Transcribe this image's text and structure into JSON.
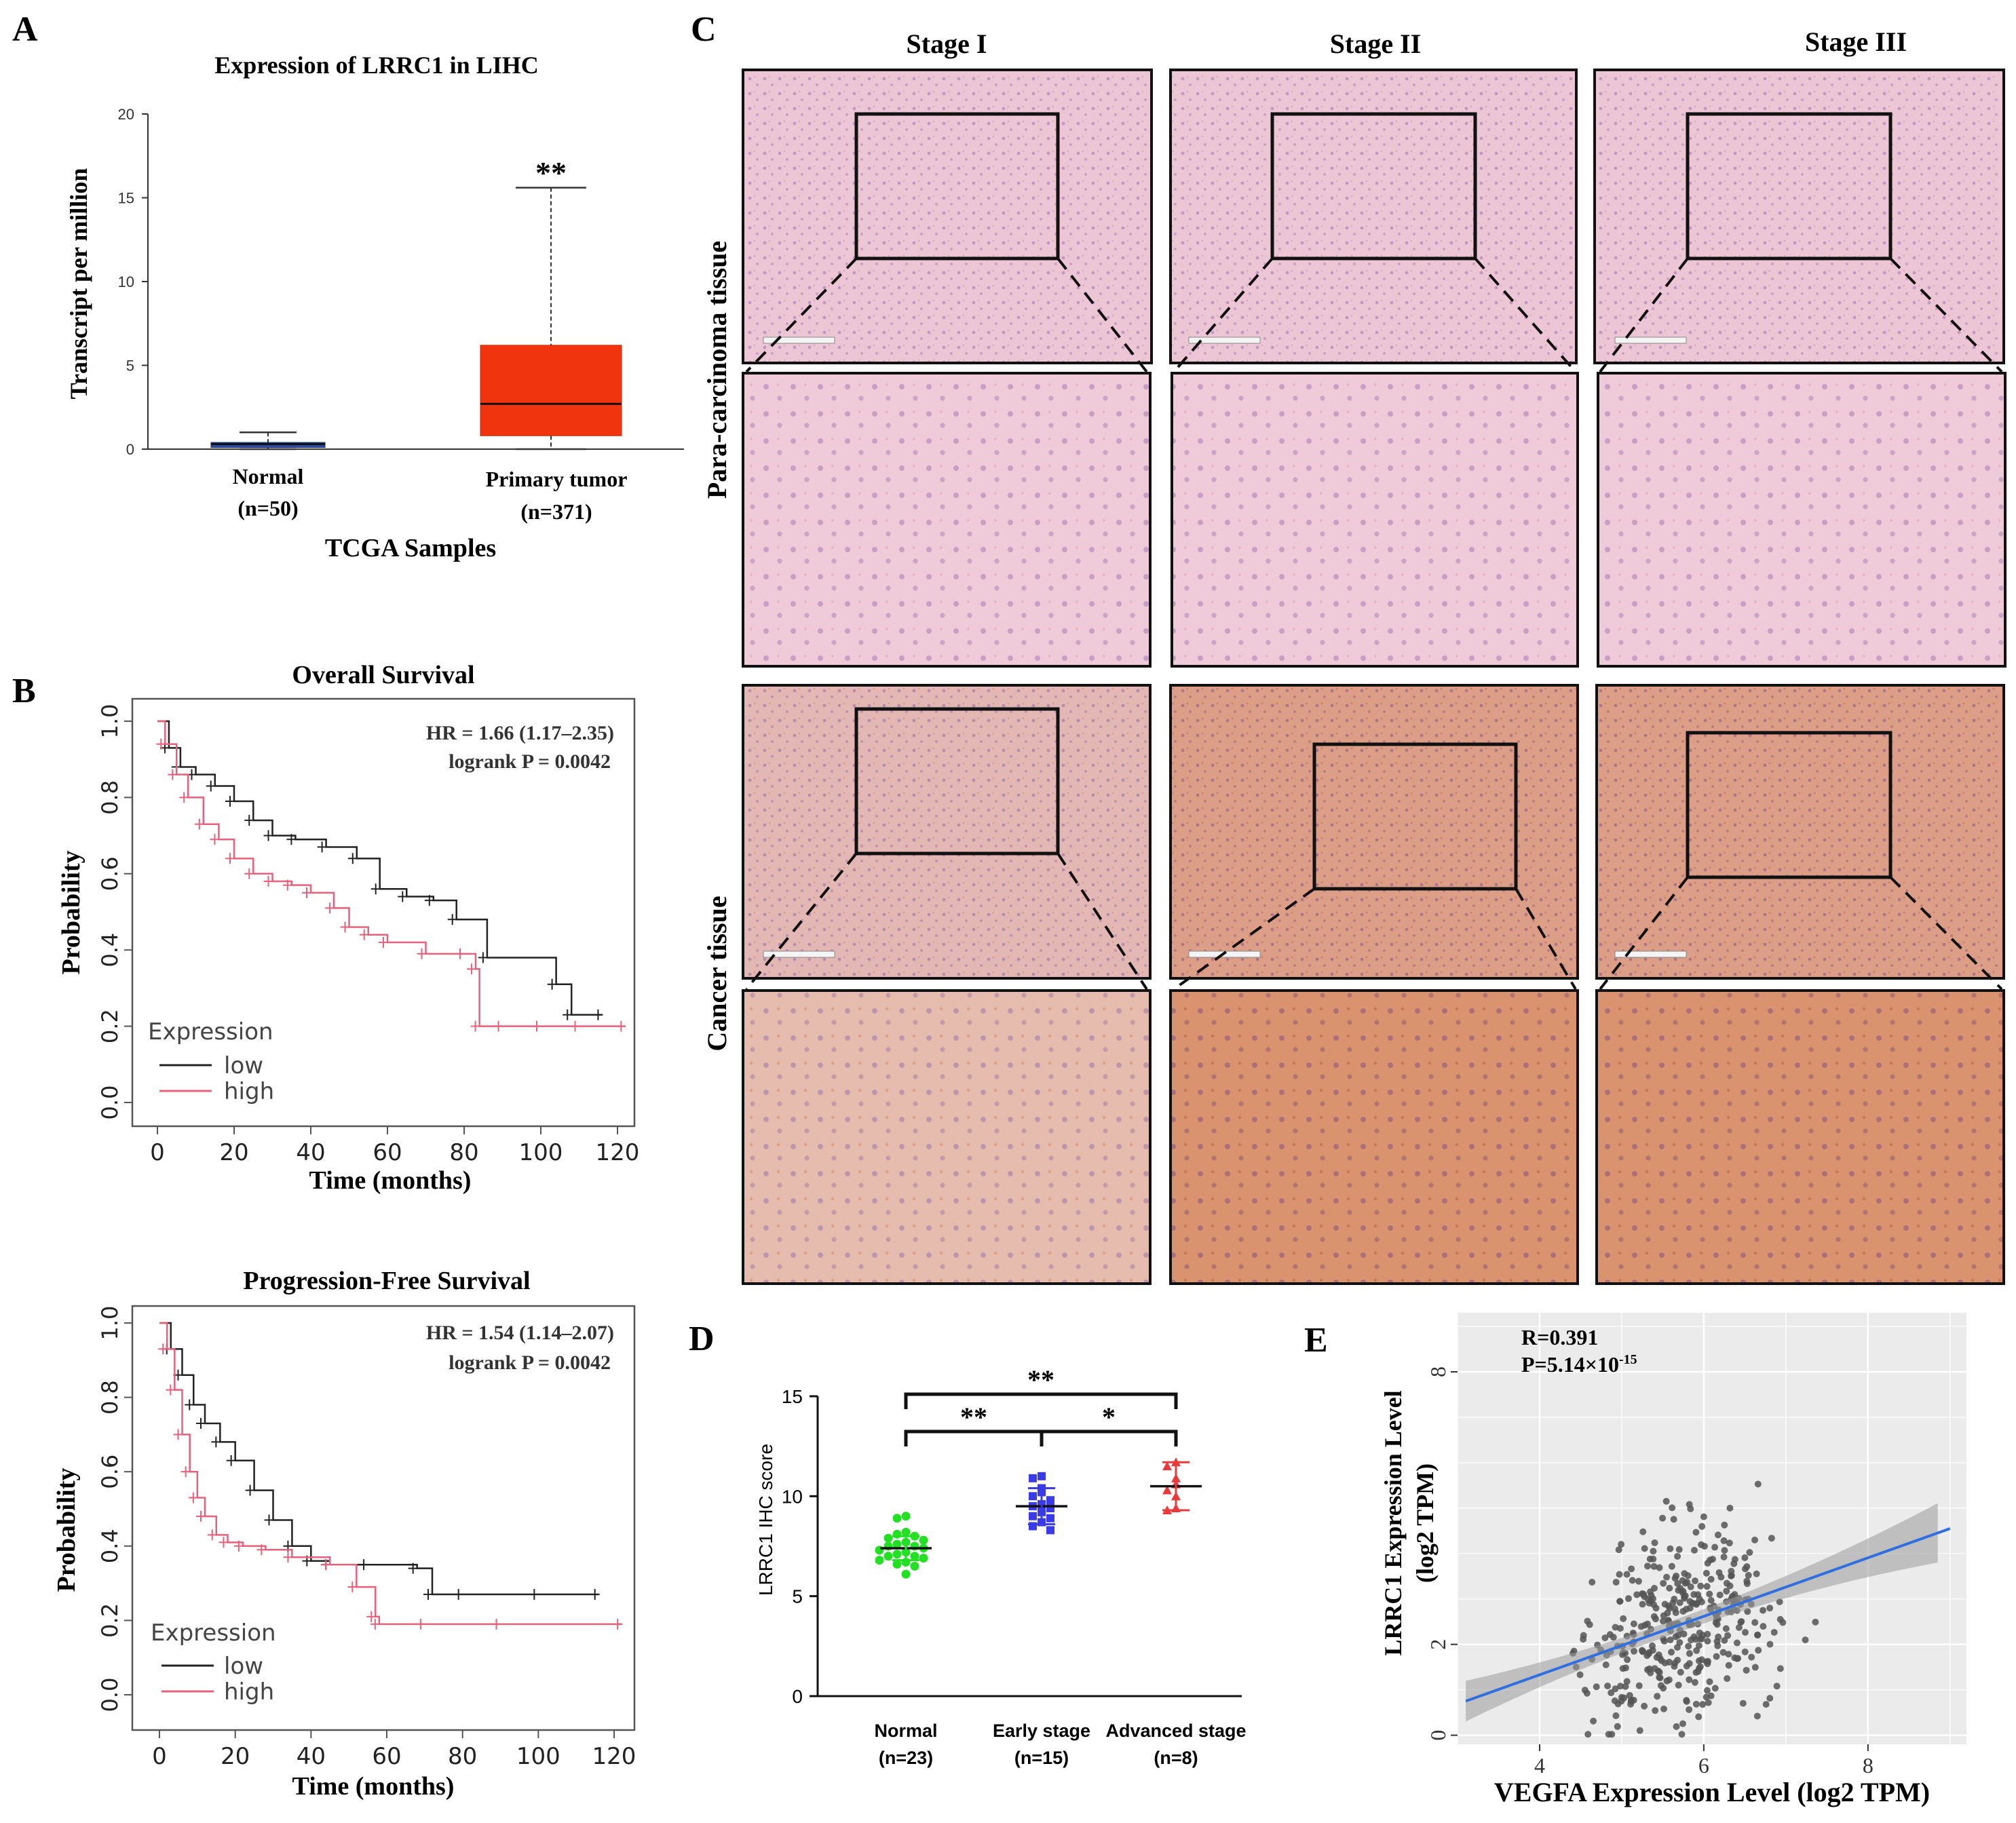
{
  "panels": {
    "A": "A",
    "B": "B",
    "C": "C",
    "D": "D",
    "E": "E"
  },
  "chart_data": [
    {
      "id": "A",
      "type": "box",
      "title": "Expression of LRRC1 in LIHC",
      "xlabel": "TCGA Samples",
      "ylabel": "Transcript per million",
      "ylim": [
        0,
        20
      ],
      "yticks": [
        "0",
        "5",
        "10",
        "15",
        "20"
      ],
      "significance": "**",
      "groups": [
        {
          "name": "Normal",
          "n": "(n=50)",
          "min": 0,
          "q1": 0.1,
          "median": 0.3,
          "q3": 0.4,
          "max": 1.0,
          "color": "#2a4fa3"
        },
        {
          "name": "Primary tumor",
          "n": "(n=371)",
          "min": 0,
          "q1": 0.8,
          "median": 2.7,
          "q3": 6.2,
          "max": 15.6,
          "color": "#f0340d"
        }
      ]
    },
    {
      "id": "B1",
      "type": "line",
      "title": "Overall Survival",
      "xlabel": "Time (months)",
      "ylabel": "Probability",
      "hr": "HR = 1.66 (1.17–2.35)",
      "logrank": "logrank P = 0.0042",
      "xlim": [
        0,
        120
      ],
      "ylim": [
        0,
        1
      ],
      "xticks": [
        "0",
        "20",
        "40",
        "60",
        "80",
        "100",
        "120"
      ],
      "yticks": [
        "0.0",
        "0.2",
        "0.4",
        "0.6",
        "0.8",
        "1.0"
      ],
      "legend_title": "Expression",
      "series": [
        {
          "name": "low",
          "color": "#222222",
          "x": [
            0,
            3,
            6,
            10,
            15,
            20,
            25,
            30,
            36,
            44,
            52,
            58,
            65,
            72,
            78,
            86,
            104,
            108,
            116
          ],
          "y": [
            1.0,
            0.93,
            0.88,
            0.86,
            0.83,
            0.79,
            0.74,
            0.7,
            0.69,
            0.67,
            0.64,
            0.56,
            0.54,
            0.53,
            0.48,
            0.38,
            0.31,
            0.23,
            0.23
          ]
        },
        {
          "name": "high",
          "color": "#e8607a",
          "x": [
            0,
            2,
            5,
            8,
            12,
            16,
            20,
            25,
            30,
            35,
            40,
            46,
            50,
            55,
            60,
            70,
            80,
            83,
            84,
            90,
            100,
            110,
            122
          ],
          "y": [
            1.0,
            0.94,
            0.86,
            0.8,
            0.73,
            0.69,
            0.64,
            0.6,
            0.58,
            0.57,
            0.55,
            0.51,
            0.46,
            0.44,
            0.42,
            0.39,
            0.39,
            0.35,
            0.2,
            0.2,
            0.2,
            0.2,
            0.2
          ]
        }
      ]
    },
    {
      "id": "B2",
      "type": "line",
      "title": "Progression-Free Survival",
      "xlabel": "Time (months)",
      "ylabel": "Probability",
      "hr": "HR = 1.54 (1.14–2.07)",
      "logrank": "logrank P = 0.0042",
      "xlim": [
        0,
        120
      ],
      "ylim": [
        0,
        1
      ],
      "xticks": [
        "0",
        "20",
        "40",
        "60",
        "80",
        "100",
        "120"
      ],
      "yticks": [
        "0.0",
        "0.2",
        "0.4",
        "0.6",
        "0.8",
        "1.0"
      ],
      "legend_title": "Expression",
      "series": [
        {
          "name": "low",
          "color": "#222222",
          "x": [
            0,
            3,
            6,
            9,
            12,
            16,
            20,
            25,
            30,
            35,
            40,
            45,
            55,
            68,
            72,
            80,
            100,
            116
          ],
          "y": [
            1.0,
            0.93,
            0.86,
            0.78,
            0.73,
            0.68,
            0.63,
            0.55,
            0.47,
            0.4,
            0.36,
            0.35,
            0.35,
            0.34,
            0.27,
            0.27,
            0.27,
            0.27
          ]
        },
        {
          "name": "high",
          "color": "#e8607a",
          "x": [
            0,
            2,
            4,
            6,
            8,
            10,
            12,
            15,
            18,
            22,
            28,
            35,
            45,
            52,
            57,
            58,
            70,
            90,
            122
          ],
          "y": [
            1.0,
            0.93,
            0.82,
            0.7,
            0.6,
            0.53,
            0.48,
            0.43,
            0.41,
            0.4,
            0.39,
            0.37,
            0.35,
            0.29,
            0.21,
            0.19,
            0.19,
            0.19,
            0.19
          ]
        }
      ]
    },
    {
      "id": "C",
      "type": "image-grid",
      "columns": [
        "Stage I",
        "Stage II",
        "Stage III"
      ],
      "rows": [
        "Para-carcinoma tissue",
        "Cancer tissue"
      ]
    },
    {
      "id": "D",
      "type": "scatter",
      "ylabel": "LRRC1 IHC score",
      "ylim": [
        0,
        15
      ],
      "yticks": [
        "0",
        "5",
        "10",
        "15"
      ],
      "groups": [
        {
          "name": "Normal",
          "n": "(n=23)",
          "color": "#22e022",
          "mean": 7.4,
          "sd": 0.6,
          "points": [
            9.0,
            8.9,
            8.2,
            8.1,
            8.0,
            7.9,
            7.8,
            7.7,
            7.6,
            7.5,
            7.5,
            7.4,
            7.3,
            7.2,
            7.1,
            7.0,
            7.0,
            6.9,
            6.8,
            6.7,
            6.6,
            6.5,
            6.1
          ]
        },
        {
          "name": "Early stage",
          "n": "(n=15)",
          "color": "#3a3ae8",
          "mean": 9.5,
          "sd": 0.9,
          "points": [
            11.0,
            10.9,
            10.4,
            10.2,
            10.0,
            9.8,
            9.6,
            9.5,
            9.4,
            9.2,
            9.0,
            8.9,
            8.7,
            8.5,
            8.3
          ]
        },
        {
          "name": "Advanced stage",
          "n": "(n=8)",
          "color": "#e83a3a",
          "mean": 10.5,
          "sd": 1.2,
          "points": [
            11.7,
            11.5,
            10.9,
            10.6,
            10.3,
            10.0,
            9.4,
            9.3
          ]
        }
      ],
      "brackets": [
        {
          "from": 0,
          "to": 2,
          "label": "**"
        },
        {
          "from": 0,
          "to": 1,
          "label": "**"
        },
        {
          "from": 1,
          "to": 2,
          "label": "*"
        }
      ]
    },
    {
      "id": "E",
      "type": "scatter",
      "xlabel": "VEGFA Expression Level (log2 TPM)",
      "ylabel": "LRRC1 Expression Level",
      "ylabel2": "(log2 TPM)",
      "r": "R=0.391",
      "p_prefix": "P=5.14×10",
      "p_exp": "-15",
      "xlim": [
        3,
        9.2
      ],
      "ylim": [
        -0.2,
        9.3
      ],
      "xticks": [
        4,
        6,
        8
      ],
      "yticks": [
        0,
        2,
        8
      ],
      "ytick_labels": [
        "0",
        "2",
        "8"
      ],
      "fit": {
        "x0": 3.1,
        "y0": 0.75,
        "x1": 9.0,
        "y1": 4.55
      },
      "n_points": 371
    }
  ]
}
